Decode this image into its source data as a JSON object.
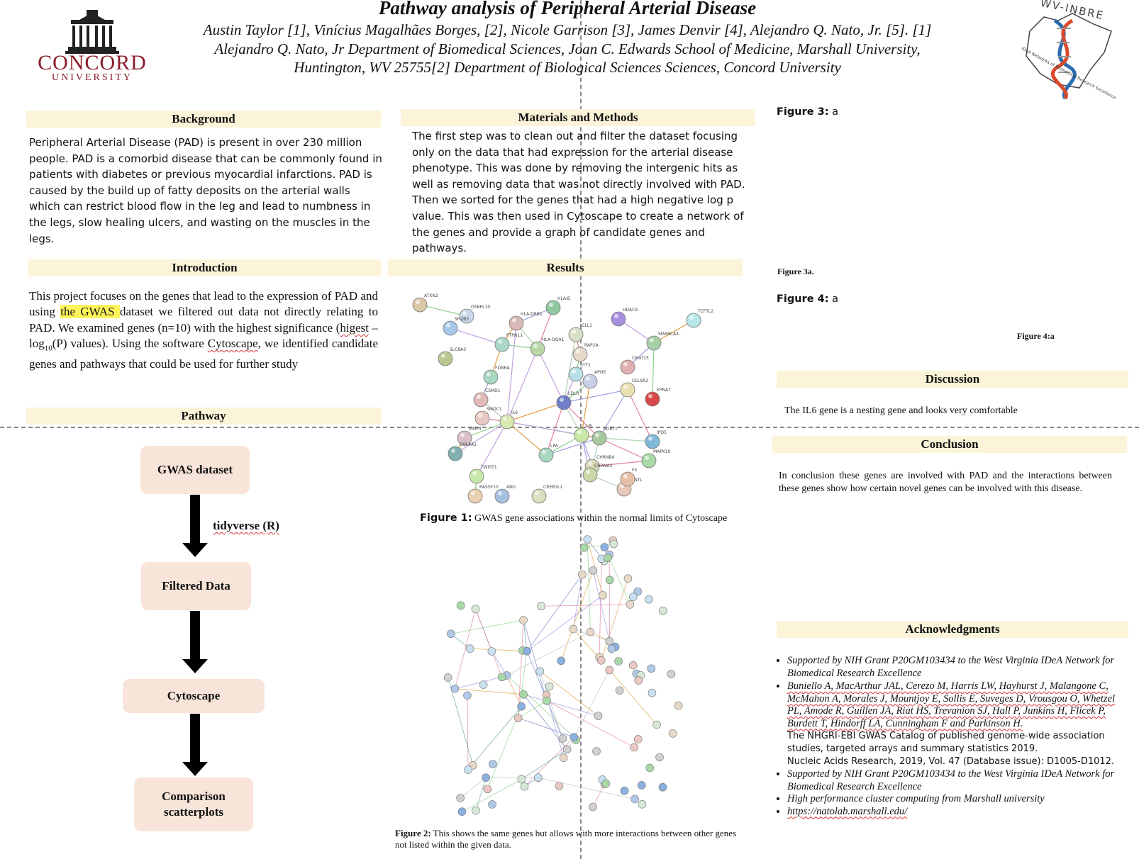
{
  "header": {
    "title": "Pathway analysis of  Peripheral Arterial Disease",
    "authors_line1": "Austin Taylor [1], Vinícius Magalhães Borges, [2], Nicole Garrison [3], James Denvir [4], Alejandro Q. Nato, Jr. [5]. [1]",
    "authors_line2": "Alejandro Q. Nato, Jr Department of Biomedical Sciences, Joan C. Edwards School of Medicine, Marshall University,",
    "authors_line3": "Huntington, WV 25755[2] Department of Biological Sciences Sciences, Concord University",
    "left_logo_name": "CONCORD",
    "left_logo_sub": "UNIVERSITY",
    "right_logo_name": "WV-INBRE",
    "right_logo_sub": "IDeA Networks of Biomedical Research Excellence"
  },
  "background": {
    "heading": "Background",
    "text": "Peripheral Arterial Disease (PAD) is present in over 230 million people. PAD is a comorbid disease that can be commonly found in patients with diabetes or previous myocardial infarctions. PAD is caused by the build up of fatty deposits on the arterial walls which can restrict blood flow in the leg and lead to numbness in the legs, slow healing ulcers, and wasting on the muscles in the legs."
  },
  "introduction": {
    "heading": "Introduction",
    "text_a": "This project focuses on the genes that lead to the expression of PAD and using ",
    "highlight": "the GWAS ",
    "text_b": "dataset we filtered out data not directly relating to PAD. We examined genes (n=10) with the highest significance (",
    "squiggle1": "higest",
    "text_c": " –log",
    "sub": "10",
    "text_d": "(P) values). Using the software ",
    "squiggle2": "Cytoscape",
    "text_e": ", we identified candidate genes and pathways that could be used for further study"
  },
  "pathway": {
    "heading": "Pathway",
    "boxes": [
      "GWAS dataset",
      "Filtered Data",
      "Cytoscape",
      "Comparison scatterplots"
    ],
    "edge_label": "tidyverse (R)"
  },
  "methods": {
    "heading": "Materials and Methods",
    "text": "The first step was to clean out and filter the dataset focusing only on the data that had expression for the arterial disease phenotype. This was done by removing the intergenic hits as well as removing data that was not directly involved with PAD. Then we sorted for the genes that had a high negative log p value.  This was then used in Cytoscape to create a network of the genes  and provide a graph of candidate genes and pathways."
  },
  "results": {
    "heading": "Results",
    "fig1_label": "Figure 1:",
    "fig1_caption": " GWAS gene associations within the normal limits of Cytoscape",
    "fig2_label": "Figure 2:",
    "fig2_caption": " This shows the same genes but allows with more interactions between other genes not listed within the given data.",
    "fig1_nodes": [
      "ATXN2",
      "OSBPL10",
      "SH2B3",
      "SLC8A3",
      "PTPN11",
      "HLA-DRB1",
      "HLA-B",
      "HLA-DQA1",
      "IGLL1",
      "RAP2A",
      "SYT1",
      "HDAC9",
      "TCF7L2",
      "SMARCA4",
      "C6orf15",
      "FDNRA",
      "CSMD1",
      "SMOC1",
      "MMP3",
      "COL4A1",
      "IL6",
      "LDLR",
      "CELSR2",
      "KPNA7",
      "LPL",
      "SORT1",
      "LPA",
      "CHRNB4",
      "MAPK10",
      "TWIST1",
      "RASSF10",
      "ABO",
      "CREB3L1",
      "CHRNA3",
      "ARNTL",
      "F5",
      "IPO5",
      "APOE"
    ]
  },
  "figure3": {
    "label": "Figure 3:",
    "value": " a",
    "small_label": "Figure 3a."
  },
  "figure4": {
    "label": "Figure 4:",
    "value": " a",
    "small_label": "Figure 4:a"
  },
  "discussion": {
    "heading": "Discussion",
    "text": "The IL6 gene is a nesting gene and looks very comfortable"
  },
  "conclusion": {
    "heading": "Conclusion",
    "text": "In conclusion these genes are involved with PAD and the interactions between these genes show how certain novel genes can be involved with this disease."
  },
  "acknowledgments": {
    "heading": "Acknowledgments",
    "item1": "Supported by NIH Grant P20GM103434 to the West Virginia IDeA Network for Biomedical Research Excellence",
    "item2_authors": "Buniello A, MacArthur JAL, Cerezo M, Harris LW, Hayhurst J, Malangone C, McMahon A, Morales J, Mountjoy E, Sollis E, Suveges D, Vrousgou O, Whetzel PL, Amode R, Guillen JA, Riat HS, Trevanion SJ, Hall P, Junkins H, Flicek P, Burdett T, Hindorff LA, Cunningham F and Parkinson H.",
    "item2_title": "The NHGRI-EBI GWAS Catalog of published genome-wide association studies, targeted arrays and summary statistics 2019.",
    "item2_journal": "Nucleic Acids Research, 2019, Vol. 47 (Database issue): D1005-D1012.",
    "item3": "Supported by NIH Grant P20GM103434 to the West Virginia IDeA Network for Biomedical Research Excellence",
    "item4": "High performance cluster computing from Marshall university",
    "item5": "https://natolab.marshall.edu/"
  }
}
